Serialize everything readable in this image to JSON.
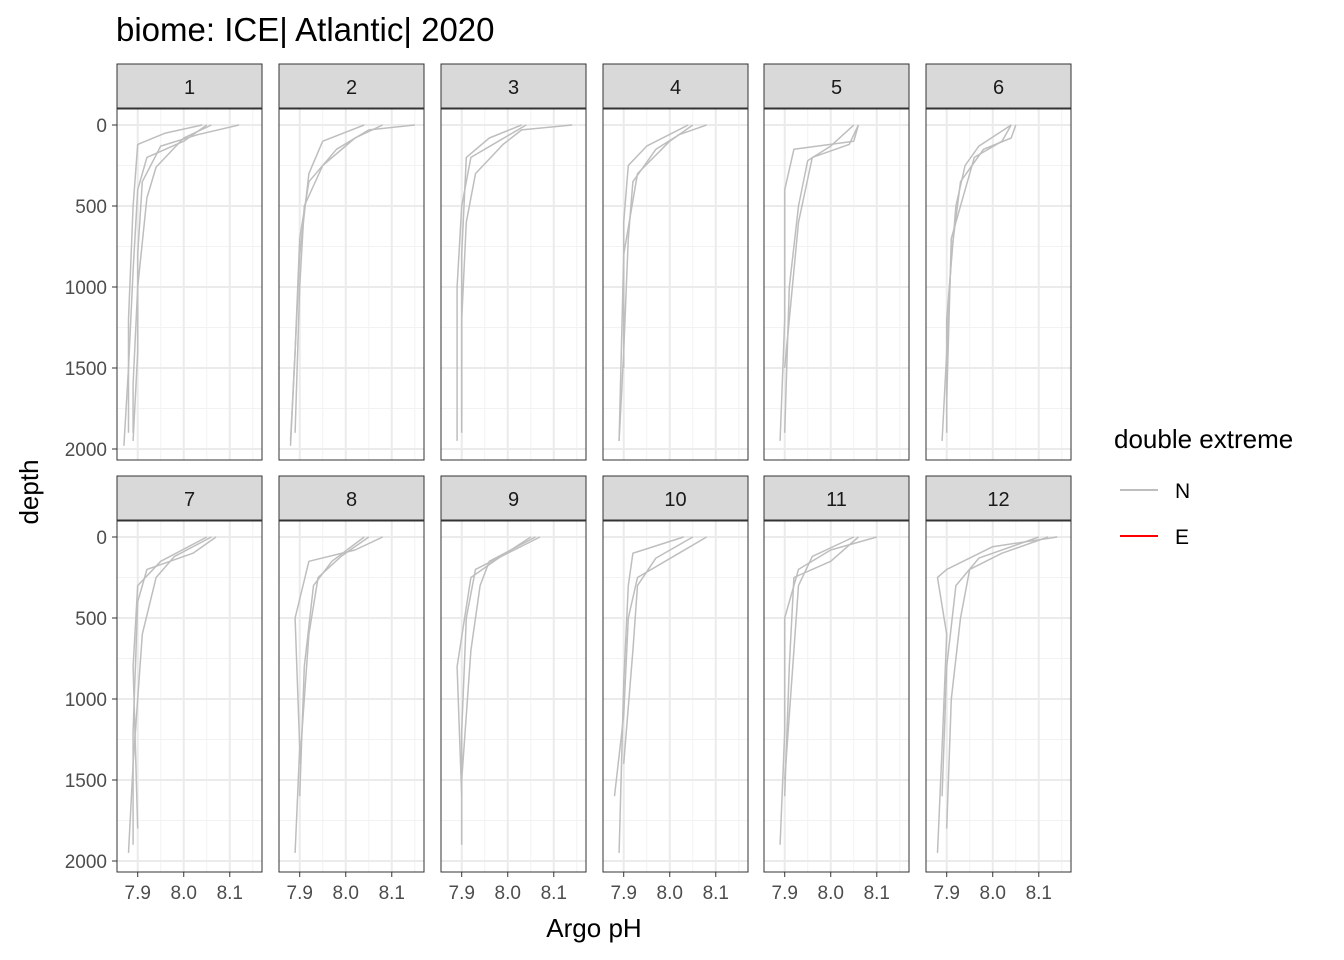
{
  "chart_data": {
    "type": "line",
    "title": "biome: ICE| Atlantic| 2020",
    "xlabel": "Argo pH",
    "ylabel": "depth",
    "xlim": [
      7.855,
      8.17
    ],
    "ylim": [
      0,
      2000
    ],
    "y_reversed": true,
    "x_ticks": [
      "7.9",
      "8.0",
      "8.1"
    ],
    "y_ticks": [
      "0",
      "500",
      "1000",
      "1500",
      "2000"
    ],
    "grid": true,
    "legend": {
      "title": "double extreme",
      "position": "right",
      "entries": [
        {
          "label": "N",
          "color": "#bebebe"
        },
        {
          "label": "E",
          "color": "#ff0000"
        }
      ]
    },
    "panels": [
      {
        "label": "1",
        "series": [
          {
            "x": [
              8.12,
              8.03,
              7.95,
              7.91,
              7.9,
              7.9,
              7.89
            ],
            "y": [
              0,
              60,
              130,
              350,
              800,
              1400,
              1950
            ]
          },
          {
            "x": [
              8.05,
              8.0,
              7.92,
              7.9,
              7.89,
              7.88,
              7.87
            ],
            "y": [
              0,
              100,
              200,
              400,
              900,
              1500,
              1980
            ]
          },
          {
            "x": [
              8.06,
              8.0,
              7.94,
              7.92,
              7.9,
              7.89,
              7.89
            ],
            "y": [
              0,
              80,
              260,
              450,
              1000,
              1600,
              1900
            ]
          },
          {
            "x": [
              8.04,
              7.96,
              7.9,
              7.89,
              7.88,
              7.88
            ],
            "y": [
              0,
              50,
              120,
              500,
              1200,
              1900
            ]
          }
        ]
      },
      {
        "label": "2",
        "series": [
          {
            "x": [
              8.15,
              8.05,
              7.98,
              7.92,
              7.9,
              7.89,
              7.88
            ],
            "y": [
              0,
              30,
              150,
              350,
              700,
              1400,
              1980
            ]
          },
          {
            "x": [
              8.08,
              8.02,
              7.95,
              7.91,
              7.9,
              7.89
            ],
            "y": [
              0,
              80,
              250,
              500,
              1000,
              1900
            ]
          },
          {
            "x": [
              8.04,
              7.95,
              7.92,
              7.9,
              7.89,
              7.88
            ],
            "y": [
              0,
              100,
              300,
              800,
              1400,
              1950
            ]
          }
        ]
      },
      {
        "label": "3",
        "series": [
          {
            "x": [
              8.14,
              8.03,
              7.99,
              7.93,
              7.91,
              7.9,
              7.9
            ],
            "y": [
              0,
              30,
              120,
              300,
              600,
              1200,
              1900
            ]
          },
          {
            "x": [
              8.04,
              7.98,
              7.92,
              7.9,
              7.89,
              7.89
            ],
            "y": [
              0,
              100,
              200,
              500,
              1000,
              1950
            ]
          },
          {
            "x": [
              8.03,
              7.96,
              7.91,
              7.9,
              7.9
            ],
            "y": [
              0,
              80,
              200,
              800,
              1800
            ]
          }
        ]
      },
      {
        "label": "4",
        "series": [
          {
            "x": [
              8.08,
              8.02,
              7.97,
              7.92,
              7.91,
              7.9,
              7.89
            ],
            "y": [
              0,
              60,
              150,
              350,
              700,
              1400,
              1950
            ]
          },
          {
            "x": [
              8.05,
              8.0,
              7.93,
              7.9,
              7.89
            ],
            "y": [
              0,
              100,
              300,
              800,
              1950
            ]
          },
          {
            "x": [
              8.04,
              7.95,
              7.91,
              7.9,
              7.9
            ],
            "y": [
              0,
              130,
              250,
              600,
              1500
            ]
          }
        ]
      },
      {
        "label": "5",
        "series": [
          {
            "x": [
              8.06,
              8.05,
              7.92,
              7.9,
              7.9,
              7.89
            ],
            "y": [
              0,
              100,
              150,
              400,
              1200,
              1950
            ]
          },
          {
            "x": [
              8.05,
              8.0,
              7.95,
              7.93,
              7.91,
              7.9
            ],
            "y": [
              0,
              130,
              220,
              500,
              1000,
              1900
            ]
          },
          {
            "x": [
              8.06,
              8.04,
              7.96,
              7.93,
              7.9
            ],
            "y": [
              0,
              120,
              200,
              600,
              1500
            ]
          }
        ]
      },
      {
        "label": "6",
        "series": [
          {
            "x": [
              8.05,
              8.04,
              7.98,
              7.93,
              7.91,
              7.9,
              7.89
            ],
            "y": [
              0,
              80,
              150,
              350,
              800,
              1400,
              1950
            ]
          },
          {
            "x": [
              8.04,
              7.97,
              7.94,
              7.92,
              7.9,
              7.9
            ],
            "y": [
              0,
              130,
              250,
              500,
              1200,
              1900
            ]
          },
          {
            "x": [
              8.04,
              8.02,
              7.96,
              7.91,
              7.9
            ],
            "y": [
              0,
              100,
              200,
              700,
              1700
            ]
          }
        ]
      },
      {
        "label": "7",
        "series": [
          {
            "x": [
              8.07,
              8.02,
              7.92,
              7.9,
              7.89,
              7.89
            ],
            "y": [
              0,
              100,
              200,
              400,
              1200,
              1900
            ]
          },
          {
            "x": [
              8.06,
              7.98,
              7.94,
              7.91,
              7.89,
              7.88
            ],
            "y": [
              0,
              120,
              250,
              600,
              1400,
              1950
            ]
          },
          {
            "x": [
              8.05,
              7.95,
              7.9,
              7.89,
              7.9
            ],
            "y": [
              0,
              150,
              300,
              800,
              1800
            ]
          }
        ]
      },
      {
        "label": "8",
        "series": [
          {
            "x": [
              8.08,
              8.02,
              7.92,
              7.89,
              7.9,
              7.89
            ],
            "y": [
              0,
              80,
              150,
              500,
              1300,
              1950
            ]
          },
          {
            "x": [
              8.04,
              7.97,
              7.93,
              7.91,
              7.9
            ],
            "y": [
              0,
              150,
              300,
              800,
              1600
            ]
          },
          {
            "x": [
              8.05,
              7.99,
              7.94,
              7.92,
              7.9
            ],
            "y": [
              0,
              120,
              250,
              600,
              1400
            ]
          }
        ]
      },
      {
        "label": "9",
        "series": [
          {
            "x": [
              8.07,
              8.0,
              7.93,
              7.91,
              7.9,
              7.9
            ],
            "y": [
              0,
              100,
              200,
              500,
              1200,
              1900
            ]
          },
          {
            "x": [
              8.05,
              7.98,
              7.92,
              7.89,
              7.9
            ],
            "y": [
              0,
              130,
              250,
              800,
              1600
            ]
          },
          {
            "x": [
              8.06,
              7.96,
              7.94,
              7.92,
              7.9
            ],
            "y": [
              0,
              150,
              300,
              700,
              1500
            ]
          }
        ]
      },
      {
        "label": "10",
        "series": [
          {
            "x": [
              8.08,
              8.02,
              7.93,
              7.91,
              7.9,
              7.88
            ],
            "y": [
              0,
              100,
              250,
              500,
              1100,
              1600
            ]
          },
          {
            "x": [
              8.03,
              7.92,
              7.91,
              7.9,
              7.89
            ],
            "y": [
              0,
              100,
              300,
              900,
              1950
            ]
          },
          {
            "x": [
              8.05,
              7.97,
              7.93,
              7.92,
              7.9
            ],
            "y": [
              0,
              130,
              300,
              700,
              1400
            ]
          }
        ]
      },
      {
        "label": "11",
        "series": [
          {
            "x": [
              8.1,
              8.0,
              7.93,
              7.9,
              7.9,
              7.89
            ],
            "y": [
              0,
              80,
              200,
              500,
              1200,
              1900
            ]
          },
          {
            "x": [
              8.06,
              8.0,
              7.92,
              7.91,
              7.9
            ],
            "y": [
              0,
              150,
              250,
              800,
              1600
            ]
          },
          {
            "x": [
              8.05,
              7.96,
              7.93,
              7.92,
              7.9
            ],
            "y": [
              0,
              120,
              300,
              700,
              1500
            ]
          }
        ]
      },
      {
        "label": "12",
        "series": [
          {
            "x": [
              8.14,
              8.0,
              7.9,
              7.88,
              7.9,
              7.89,
              7.88
            ],
            "y": [
              0,
              60,
              200,
              250,
              600,
              1300,
              1950
            ]
          },
          {
            "x": [
              8.12,
              8.02,
              7.95,
              7.93,
              7.91,
              7.9
            ],
            "y": [
              0,
              100,
              200,
              500,
              1000,
              1800
            ]
          },
          {
            "x": [
              8.1,
              7.97,
              7.92,
              7.9,
              7.89
            ],
            "y": [
              0,
              130,
              300,
              800,
              1600
            ]
          }
        ]
      }
    ]
  }
}
